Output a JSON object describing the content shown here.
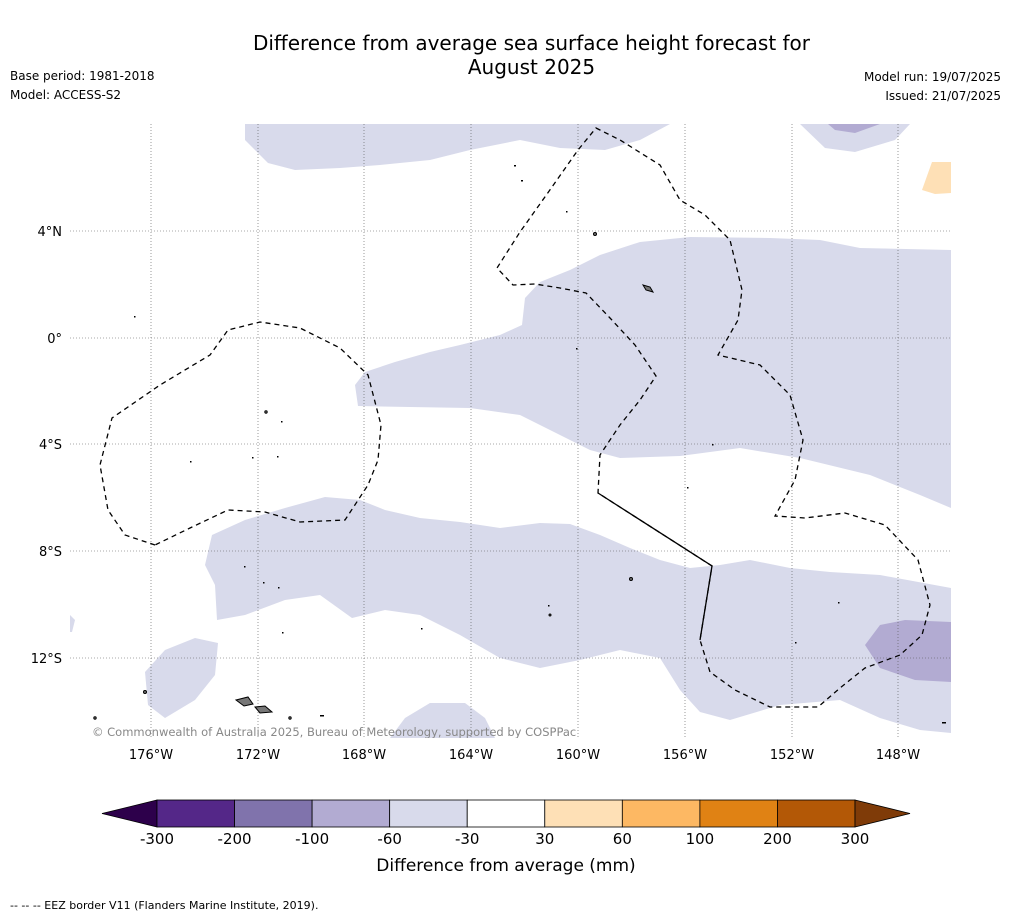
{
  "title_line1": "Difference from average sea surface height forecast for",
  "title_line2": "August 2025",
  "base_period": "Base period: 1981-2018",
  "model": "Model: ACCESS-S2",
  "model_run": "Model run: 19/07/2025",
  "issued": "Issued: 21/07/2025",
  "copyright": "© Commonwealth of Australia 2025, Bureau of Meteorology, supported by COSPPac",
  "lat_labels": [
    "4°N",
    "0°",
    "4°S",
    "8°S",
    "12°S"
  ],
  "lon_labels": [
    "176°W",
    "172°W",
    "168°W",
    "164°W",
    "160°W",
    "156°W",
    "152°W",
    "148°W"
  ],
  "colorbar": {
    "ticks": [
      "-300",
      "-200",
      "-100",
      "-60",
      "-30",
      "30",
      "60",
      "100",
      "200",
      "300"
    ],
    "colors": [
      "#2d004b",
      "#542788",
      "#8073ac",
      "#b2abd2",
      "#d8daeb",
      "#ffffff",
      "#fee0b6",
      "#fdb863",
      "#e08214",
      "#b35806",
      "#7f3b08"
    ],
    "label": "Difference from average (mm)"
  },
  "footer": "--  --  -- EEZ border V11 (Flanders Marine Institute, 2019)."
}
